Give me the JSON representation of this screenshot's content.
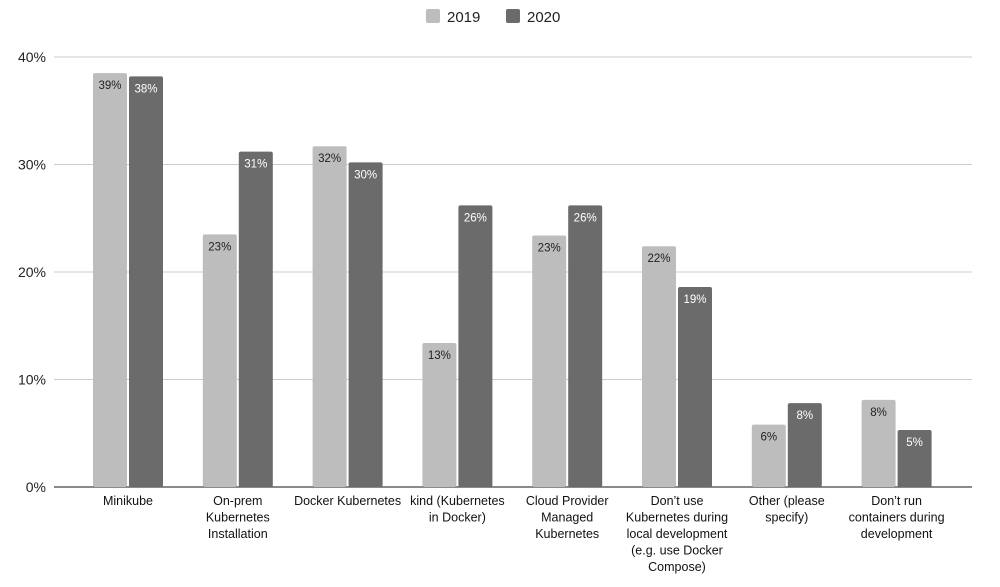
{
  "chart_data": {
    "type": "bar",
    "categories": [
      [
        "Minikube"
      ],
      [
        "On-prem",
        "Kubernetes",
        "Installation"
      ],
      [
        "Docker Kubernetes"
      ],
      [
        "kind (Kubernetes",
        "in Docker)"
      ],
      [
        "Cloud Provider",
        "Managed",
        "Kubernetes"
      ],
      [
        "Don’t use",
        "Kubernetes during",
        "local development",
        "(e.g. use Docker",
        "Compose)"
      ],
      [
        "Other (please",
        "specify)"
      ],
      [
        "Don’t run",
        "containers during",
        "development"
      ]
    ],
    "series": [
      {
        "name": "2019",
        "color": "#bdbdbd",
        "values": [
          38.5,
          23.5,
          31.7,
          13.4,
          23.4,
          22.4,
          5.8,
          8.1
        ],
        "labels": [
          "39%",
          "23%",
          "32%",
          "13%",
          "23%",
          "22%",
          "6%",
          "8%"
        ]
      },
      {
        "name": "2020",
        "color": "#6b6b6b",
        "values": [
          38.2,
          31.2,
          30.2,
          26.2,
          26.2,
          18.6,
          7.8,
          5.3
        ],
        "labels": [
          "38%",
          "31%",
          "30%",
          "26%",
          "26%",
          "19%",
          "8%",
          "5%"
        ]
      }
    ],
    "yticks": [
      "0%",
      "10%",
      "20%",
      "30%",
      "40%"
    ],
    "ylim": [
      0,
      40
    ],
    "legend": "top-center",
    "grid": true
  }
}
